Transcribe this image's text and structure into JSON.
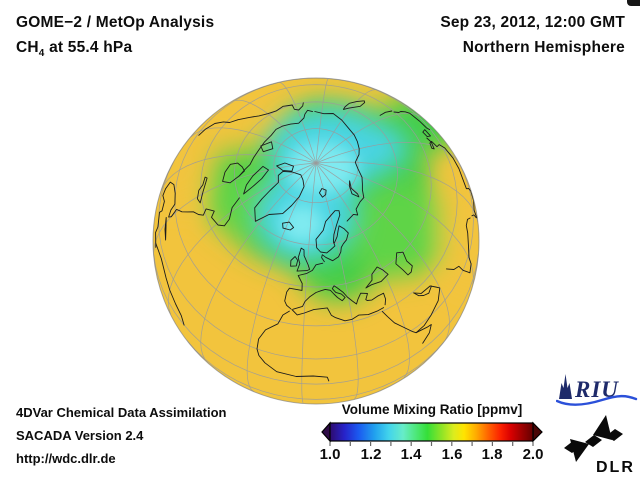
{
  "window": {
    "background": "#ffffff"
  },
  "header": {
    "title_line1": "GOME−2 / MetOp Analysis",
    "species": "CH",
    "species_subscript": "4",
    "level_suffix": " at 55.4 hPa",
    "datetime": "Sep 23, 2012, 12:00 GMT",
    "region": "Northern Hemisphere"
  },
  "globe": {
    "view": "Northern Hemisphere",
    "field": "CH4 volume mixing ratio at 55.4 hPa",
    "approx_values_ppmv": {
      "polar_center": 1.35,
      "midlatitude_band": 1.45,
      "low_latitude": 1.6
    },
    "colors": {
      "polar_low": "#55dce8",
      "midlatitude": "#44ce47",
      "low_latitude": "#f2c43d"
    }
  },
  "colorbar": {
    "title": "Volume Mixing Ratio [ppmv]",
    "ticks": [
      "1.0",
      "1.2",
      "1.4",
      "1.6",
      "1.8",
      "2.0"
    ],
    "range_min": 1.0,
    "range_max": 2.0
  },
  "footer": {
    "line1": "4DVar Chemical Data Assimilation",
    "line2": "SACADA Version 2.4",
    "line3": "http://wdc.dlr.de"
  },
  "logos": {
    "riu_text": "RIU",
    "dlr_text": "DLR"
  }
}
